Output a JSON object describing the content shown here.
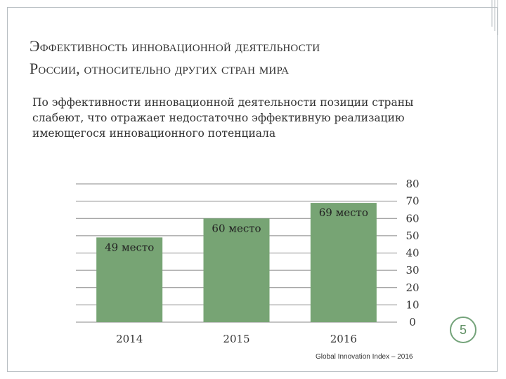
{
  "slide": {
    "title_line1": "Эффективность инновационной деятельности",
    "title_line2": "России, относительно других стран мира",
    "body_line1": "По эффективности инновационной деятельности позиции страны",
    "body_line2": "слабеют, что отражает недостаточно эффективную реализацию",
    "body_line3": "имеющегося инновационного потенциала",
    "source": "Global Innovation Index – 2016",
    "page_number": "5"
  },
  "colors": {
    "bar": "#77a474",
    "grid": "#888888",
    "accent": "#74a37a"
  },
  "chart_data": {
    "type": "bar",
    "categories": [
      "2014",
      "2015",
      "2016"
    ],
    "values": [
      49,
      60,
      69
    ],
    "data_labels": [
      "49 место",
      "60 место",
      "69 место"
    ],
    "title": "",
    "xlabel": "",
    "ylabel": "",
    "ylim": [
      0,
      80
    ],
    "yticks": [
      0,
      10,
      20,
      30,
      40,
      50,
      60,
      70,
      80
    ],
    "yaxis_position": "right",
    "grid": true,
    "legend": "none"
  }
}
